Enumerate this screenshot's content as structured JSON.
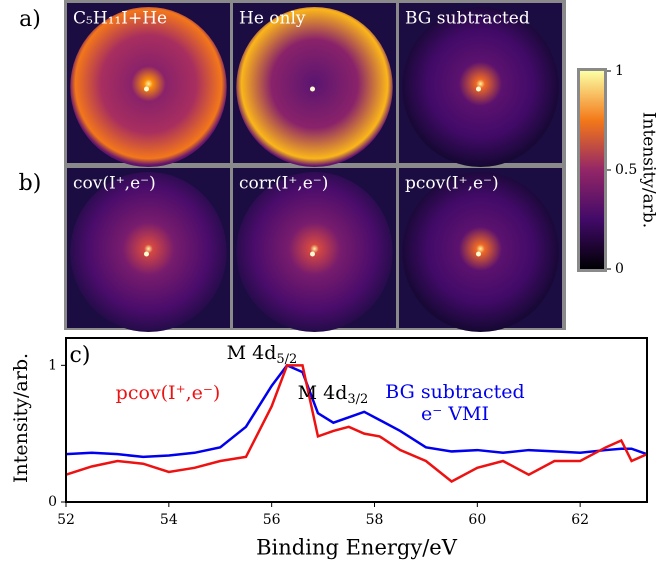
{
  "figure": {
    "panel_labels": [
      "a)",
      "b)",
      "c)"
    ],
    "images": [
      {
        "title": "C₅H₁₁I+He"
      },
      {
        "title": "He only"
      },
      {
        "title": "BG subtracted"
      },
      {
        "title": "cov(I⁺,e⁻)"
      },
      {
        "title": "corr(I⁺,e⁻)"
      },
      {
        "title": "pcov(I⁺,e⁻)"
      }
    ],
    "colorbar": {
      "label": "Intensity/arb.",
      "lim": [
        0,
        1
      ],
      "ticks": [
        0,
        0.5,
        1
      ]
    }
  },
  "chart_data": {
    "type": "line",
    "xlabel": "Binding Energy/eV",
    "ylabel": "Intensity/arb.",
    "x": [
      52,
      52.5,
      53,
      53.5,
      54,
      54.5,
      55,
      55.5,
      56,
      56.3,
      56.6,
      56.9,
      57.2,
      57.5,
      57.8,
      58.1,
      58.5,
      59,
      59.5,
      60,
      60.5,
      61,
      61.5,
      62,
      62.5,
      62.8,
      63,
      63.3
    ],
    "series": [
      {
        "name": "BG subtracted e⁻ VMI",
        "color": "#0000ee",
        "values": [
          0.35,
          0.36,
          0.35,
          0.33,
          0.34,
          0.36,
          0.4,
          0.55,
          0.85,
          1.0,
          0.95,
          0.65,
          0.58,
          0.62,
          0.66,
          0.6,
          0.52,
          0.4,
          0.37,
          0.38,
          0.36,
          0.38,
          0.37,
          0.36,
          0.38,
          0.39,
          0.39,
          0.35
        ]
      },
      {
        "name": "pcov(I⁺,e⁻)",
        "color": "#ee1111",
        "values": [
          0.2,
          0.26,
          0.3,
          0.28,
          0.22,
          0.25,
          0.3,
          0.33,
          0.7,
          1.0,
          1.0,
          0.48,
          0.52,
          0.55,
          0.5,
          0.48,
          0.38,
          0.3,
          0.15,
          0.25,
          0.3,
          0.2,
          0.3,
          0.3,
          0.4,
          0.45,
          0.3,
          0.35
        ]
      }
    ],
    "annotations": [
      {
        "main": "M 4d",
        "sub": "5/2"
      },
      {
        "main": "M 4d",
        "sub": "3/2"
      }
    ],
    "xlim": [
      52,
      63.3
    ],
    "ylim": [
      0,
      1.2
    ],
    "xticks": [
      52,
      54,
      56,
      58,
      60,
      62
    ],
    "yticks": [
      0,
      1
    ]
  }
}
